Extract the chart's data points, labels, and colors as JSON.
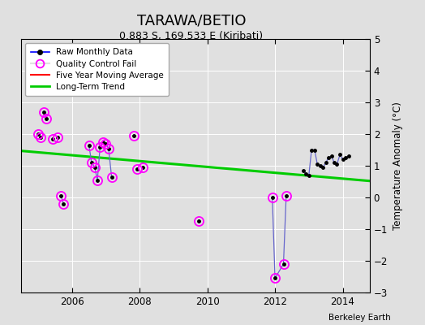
{
  "title": "TARAWA/BETIO",
  "subtitle": "0.883 S, 169.533 E (Kiribati)",
  "ylabel": "Temperature Anomaly (°C)",
  "credit": "Berkeley Earth",
  "ylim": [
    -3,
    5
  ],
  "xlim": [
    2004.5,
    2014.8
  ],
  "yticks": [
    -3,
    -2,
    -1,
    0,
    1,
    2,
    3,
    4,
    5
  ],
  "xticks": [
    2006,
    2008,
    2010,
    2012,
    2014
  ],
  "bg_color": "#e0e0e0",
  "fig_color": "#e0e0e0",
  "connected_segments": [
    [
      [
        2005.17,
        2.7
      ],
      [
        2005.25,
        2.5
      ]
    ],
    [
      [
        2005.67,
        0.05
      ],
      [
        2005.75,
        -0.2
      ]
    ],
    [
      [
        2006.5,
        1.65
      ],
      [
        2006.58,
        1.1
      ],
      [
        2006.67,
        0.95
      ],
      [
        2006.75,
        0.55
      ],
      [
        2006.83,
        1.6
      ],
      [
        2006.92,
        1.75
      ],
      [
        2007.0,
        1.7
      ],
      [
        2007.08,
        1.55
      ],
      [
        2007.17,
        0.65
      ]
    ],
    [
      [
        2011.92,
        0.0
      ],
      [
        2012.0,
        -2.55
      ],
      [
        2012.25,
        -2.1
      ],
      [
        2012.33,
        0.05
      ]
    ],
    [
      [
        2012.83,
        0.85
      ],
      [
        2012.92,
        0.75
      ],
      [
        2013.0,
        0.7
      ],
      [
        2013.08,
        1.5
      ],
      [
        2013.17,
        1.5
      ],
      [
        2013.25,
        1.05
      ],
      [
        2013.33,
        1.0
      ],
      [
        2013.42,
        0.95
      ],
      [
        2013.5,
        1.1
      ],
      [
        2013.58,
        1.25
      ],
      [
        2013.67,
        1.3
      ],
      [
        2013.75,
        1.1
      ],
      [
        2013.83,
        1.05
      ],
      [
        2013.92,
        1.35
      ],
      [
        2014.0,
        1.2
      ],
      [
        2014.08,
        1.25
      ],
      [
        2014.17,
        1.3
      ]
    ]
  ],
  "isolated_points": [
    [
      2005.0,
      2.0
    ],
    [
      2005.08,
      1.9
    ],
    [
      2005.42,
      1.85
    ],
    [
      2005.58,
      1.9
    ],
    [
      2007.83,
      1.95
    ],
    [
      2007.92,
      0.9
    ],
    [
      2008.08,
      0.95
    ],
    [
      2009.75,
      -0.75
    ]
  ],
  "qc_fail_points": [
    [
      2005.0,
      2.0
    ],
    [
      2005.08,
      1.9
    ],
    [
      2005.17,
      2.7
    ],
    [
      2005.25,
      2.5
    ],
    [
      2005.42,
      1.85
    ],
    [
      2005.58,
      1.9
    ],
    [
      2005.67,
      0.05
    ],
    [
      2005.75,
      -0.2
    ],
    [
      2006.5,
      1.65
    ],
    [
      2006.58,
      1.1
    ],
    [
      2006.67,
      0.95
    ],
    [
      2006.75,
      0.55
    ],
    [
      2006.83,
      1.6
    ],
    [
      2006.92,
      1.75
    ],
    [
      2007.0,
      1.7
    ],
    [
      2007.08,
      1.55
    ],
    [
      2007.17,
      0.65
    ],
    [
      2007.83,
      1.95
    ],
    [
      2007.92,
      0.9
    ],
    [
      2008.08,
      0.95
    ],
    [
      2009.75,
      -0.75
    ],
    [
      2011.92,
      0.0
    ],
    [
      2012.0,
      -2.55
    ],
    [
      2012.25,
      -2.1
    ],
    [
      2012.33,
      0.05
    ]
  ],
  "trend_x": [
    2004.5,
    2014.8
  ],
  "trend_y": [
    1.47,
    0.52
  ],
  "raw_line_color": "#6666cc",
  "raw_dot_color": "black",
  "qc_color": "magenta",
  "trend_color": "#00cc00",
  "moving_avg_color": "red",
  "title_fontsize": 13,
  "subtitle_fontsize": 9,
  "tick_fontsize": 8.5,
  "ylabel_fontsize": 8.5
}
